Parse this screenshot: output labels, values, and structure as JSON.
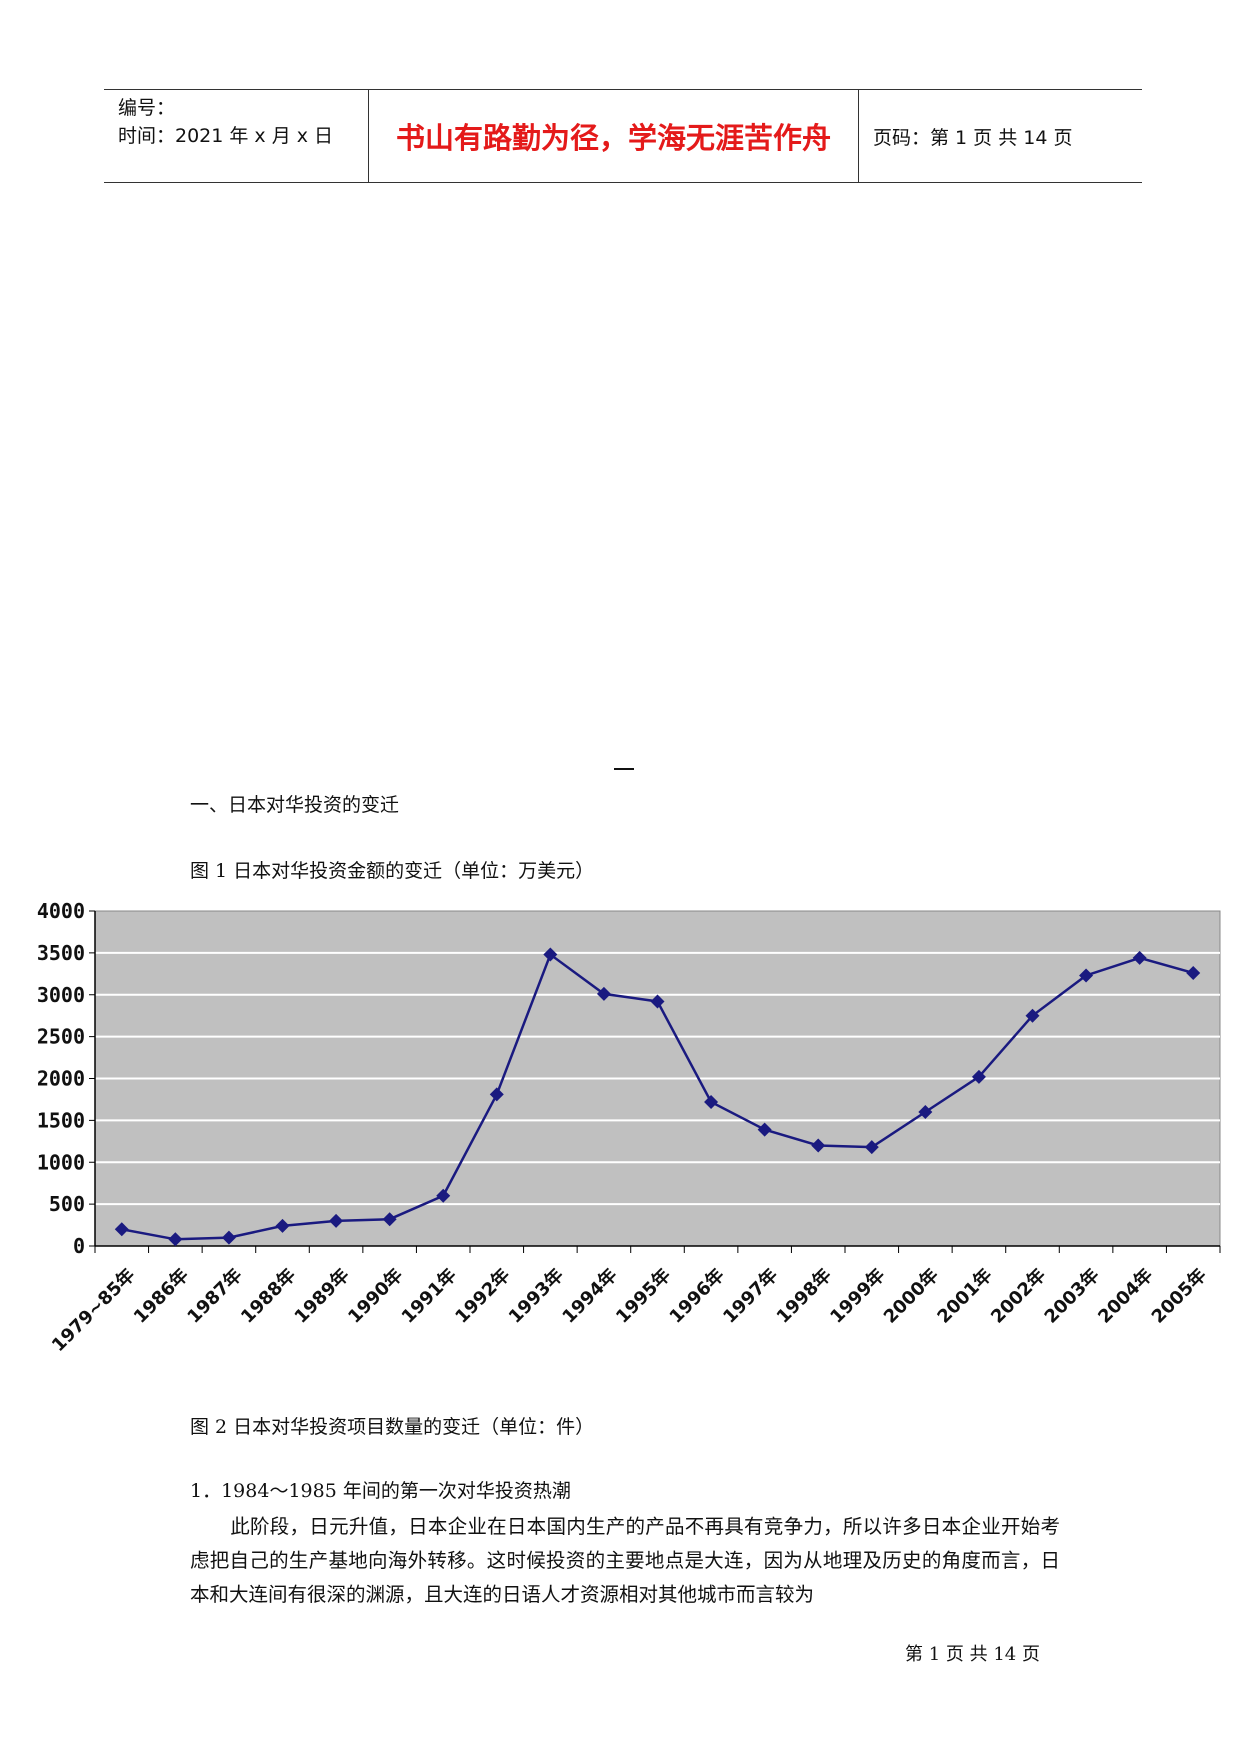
{
  "header": {
    "serial_label": "编号：",
    "time_label": "时间：2021 年 x 月 x 日",
    "motto": "书山有路勤为径，学海无涯苦作舟",
    "page_label": "页码：第 1 页  共 14 页"
  },
  "section_title": "一、日本对华投资的变迁",
  "figure1_caption": "图 1  日本对华投资金额的变迁（单位：万美元）",
  "figure2_caption": "图 2  日本对华投资项目数量的变迁（单位：件）",
  "subsection_title": "1．1984～1985 年间的第一次对华投资热潮",
  "paragraph": "此阶段，日元升值，日本企业在日本国内生产的产品不再具有竞争力，所以许多日本企业开始考虑把自己的生产基地向海外转移。这时候投资的主要地点是大连，因为从地理及历史的角度而言，日本和大连间有很深的渊源，且大连的日语人才资源相对其他城市而言较为",
  "footer": "第  1  页  共  14  页",
  "chart_data": {
    "type": "line",
    "categories": [
      "1979~85年",
      "1986年",
      "1987年",
      "1988年",
      "1989年",
      "1990年",
      "1991年",
      "1992年",
      "1993年",
      "1994年",
      "1995年",
      "1996年",
      "1997年",
      "1998年",
      "1999年",
      "2000年",
      "2001年",
      "2002年",
      "2003年",
      "2004年",
      "2005年"
    ],
    "values": [
      200,
      80,
      100,
      240,
      300,
      320,
      600,
      1810,
      3480,
      3010,
      2920,
      1720,
      1390,
      1200,
      1180,
      1600,
      2020,
      2750,
      3230,
      3440,
      3260
    ],
    "ylim": [
      0,
      4000
    ],
    "yticks": [
      0,
      500,
      1000,
      1500,
      2000,
      2500,
      3000,
      3500,
      4000
    ],
    "grid": true,
    "plot_bg": "#c0c0c0",
    "line_color": "#1a1a80"
  }
}
